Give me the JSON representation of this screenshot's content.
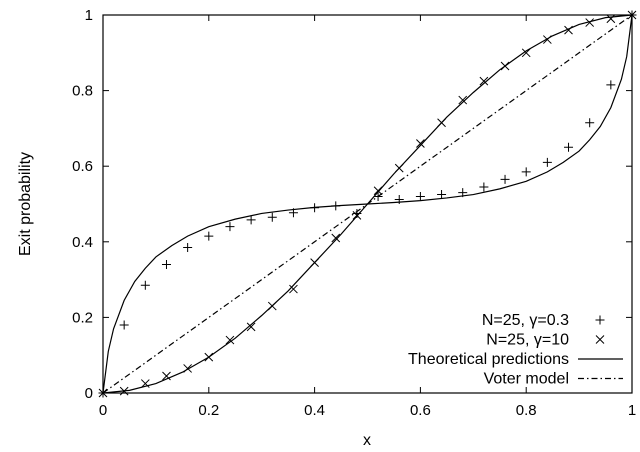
{
  "chart_data": {
    "type": "scatter",
    "xlabel": "x",
    "ylabel": "Exit probability",
    "xlim": [
      0,
      1
    ],
    "ylim": [
      0,
      1
    ],
    "xticks": [
      "0",
      "0.2",
      "0.4",
      "0.6",
      "0.8",
      "1"
    ],
    "yticks": [
      "0",
      "0.2",
      "0.4",
      "0.6",
      "0.8",
      "1"
    ],
    "grid": false,
    "legend_position": "bottom-right",
    "series": [
      {
        "name": "N=25, γ=0.3",
        "kind": "points",
        "marker": "plus",
        "x": [
          0,
          0.04,
          0.08,
          0.12,
          0.16,
          0.2,
          0.24,
          0.28,
          0.32,
          0.36,
          0.4,
          0.44,
          0.48,
          0.52,
          0.56,
          0.6,
          0.64,
          0.68,
          0.72,
          0.76,
          0.8,
          0.84,
          0.88,
          0.92,
          0.96,
          1.0
        ],
        "y": [
          0,
          0.18,
          0.285,
          0.34,
          0.385,
          0.415,
          0.44,
          0.458,
          0.465,
          0.477,
          0.49,
          0.495,
          0.475,
          0.52,
          0.512,
          0.52,
          0.525,
          0.53,
          0.545,
          0.565,
          0.585,
          0.61,
          0.65,
          0.715,
          0.815,
          1.0
        ]
      },
      {
        "name": "N=25, γ=10",
        "kind": "points",
        "marker": "cross",
        "x": [
          0,
          0.04,
          0.08,
          0.12,
          0.16,
          0.2,
          0.24,
          0.28,
          0.32,
          0.36,
          0.4,
          0.44,
          0.48,
          0.52,
          0.56,
          0.6,
          0.64,
          0.68,
          0.72,
          0.76,
          0.8,
          0.84,
          0.88,
          0.92,
          0.96,
          1.0
        ],
        "y": [
          0,
          0.005,
          0.025,
          0.045,
          0.065,
          0.095,
          0.14,
          0.175,
          0.23,
          0.275,
          0.345,
          0.41,
          0.47,
          0.535,
          0.595,
          0.66,
          0.715,
          0.775,
          0.825,
          0.865,
          0.9,
          0.935,
          0.96,
          0.98,
          0.99,
          1.0
        ]
      },
      {
        "name": "Theoretical predictions",
        "kind": "curves",
        "stroke": "solid",
        "curves": [
          {
            "x": [
              0,
              0.01,
              0.02,
              0.04,
              0.06,
              0.08,
              0.1,
              0.13,
              0.16,
              0.2,
              0.25,
              0.3,
              0.35,
              0.4,
              0.45,
              0.5,
              0.55,
              0.6,
              0.65,
              0.7,
              0.75,
              0.8,
              0.84,
              0.87,
              0.9,
              0.92,
              0.94,
              0.96,
              0.98,
              0.99,
              1.0
            ],
            "y": [
              0,
              0.11,
              0.17,
              0.245,
              0.295,
              0.33,
              0.36,
              0.39,
              0.415,
              0.44,
              0.46,
              0.475,
              0.484,
              0.491,
              0.496,
              0.5,
              0.504,
              0.509,
              0.516,
              0.525,
              0.54,
              0.56,
              0.585,
              0.61,
              0.64,
              0.67,
              0.705,
              0.755,
              0.83,
              0.89,
              1.0
            ]
          },
          {
            "x": [
              0,
              0.05,
              0.1,
              0.15,
              0.2,
              0.25,
              0.3,
              0.35,
              0.4,
              0.45,
              0.5,
              0.55,
              0.6,
              0.65,
              0.7,
              0.75,
              0.8,
              0.85,
              0.9,
              0.95,
              1.0
            ],
            "y": [
              0,
              0.007,
              0.025,
              0.055,
              0.095,
              0.145,
              0.205,
              0.27,
              0.345,
              0.42,
              0.5,
              0.58,
              0.655,
              0.73,
              0.795,
              0.855,
              0.905,
              0.945,
              0.975,
              0.993,
              1.0
            ]
          }
        ]
      },
      {
        "name": "Voter model",
        "kind": "curves",
        "stroke": "dashdot",
        "curves": [
          {
            "x": [
              0,
              1
            ],
            "y": [
              0,
              1
            ]
          }
        ]
      }
    ]
  }
}
